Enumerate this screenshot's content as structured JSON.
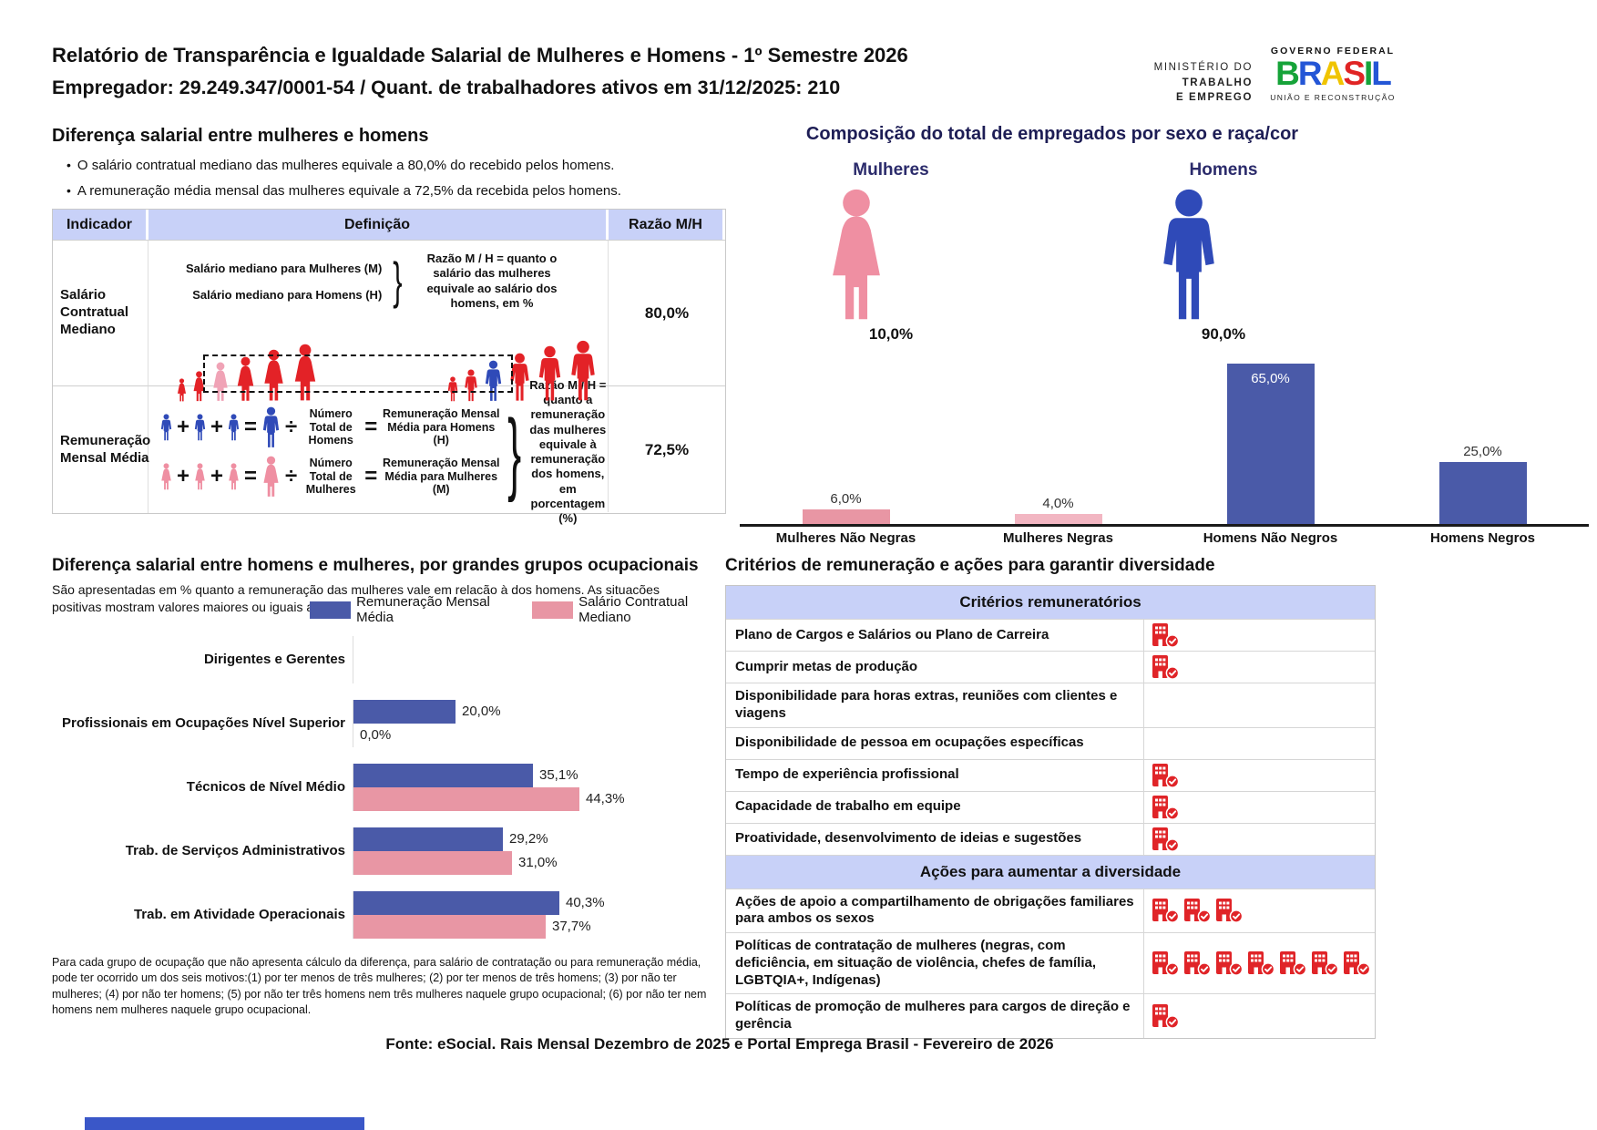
{
  "header": {
    "title_line1": "Relatório de Transparência e Igualdade Salarial de Mulheres e Homens - 1º Semestre 2026",
    "title_line2": "Empregador: 29.249.347/0001-54 / Quant. de trabalhadores ativos em 31/12/2025: 210"
  },
  "logos": {
    "ministry_line1": "MINISTÉRIO DO",
    "ministry_line2": "TRABALHO",
    "ministry_line3": "E EMPREGO",
    "gov_top": "GOVERNO FEDERAL",
    "gov_name": "BRASIL",
    "gov_bottom": "UNIÃO E RECONSTRUÇÃO"
  },
  "ops": {
    "plus": "+",
    "equals": "=",
    "divide": "÷",
    "brace": "}"
  },
  "gap_section": {
    "title": "Diferença salarial entre mulheres e homens",
    "bullets": [
      "O salário contratual mediano das mulheres equivale a 80,0% do recebido pelos homens.",
      "A remuneração média mensal das mulheres equivale a 72,5% da recebida pelos homens."
    ],
    "col_indicator": "Indicador",
    "col_definition": "Definição",
    "col_ratio": "Razão M/H",
    "row1": {
      "indicator": "Salário Contratual Mediano",
      "def_line1": "Salário mediano para Mulheres (M)",
      "def_line2": "Salário mediano para Homens (H)",
      "def_note": "Razão M / H = quanto o salário das mulheres equivale ao salário dos homens, em %",
      "ratio": "80,0%"
    },
    "row2": {
      "indicator": "Remuneração Mensal Média",
      "men_divisor": "Número Total de Homens",
      "men_result": "Remuneração Mensal Média para Homens (H)",
      "women_divisor": "Número Total de Mulheres",
      "women_result": "Remuneração Mensal Média para Mulheres (M)",
      "def_note": "Razão M / H = quanto a remuneração das mulheres equivale à remuneração dos homens, em porcentagem (%)",
      "ratio": "72,5%"
    }
  },
  "composition": {
    "female_label": "Mulheres",
    "female_value": "10,0%",
    "male_label": "Homens",
    "male_value": "90,0%"
  },
  "occupation": {
    "subtitle": "São apresentadas em % quanto a remuneração das mulheres vale em relação à dos homens. As situações positivas mostram valores maiores ou iguais a 100%",
    "legend": [
      "Remuneração Mensal Média",
      "Salário Contratual Mediano"
    ],
    "legend_colors": [
      "#4a5aa8",
      "#e896a4"
    ],
    "footnote": "Para cada grupo de ocupação que não apresenta cálculo da diferença, para salário de contratação ou para remuneração média, pode ter ocorrido um dos seis motivos:(1) por ter menos de três mulheres; (2) por ter menos de três homens; (3) por não ter mulheres; (4) por não ter homens; (5) por não ter três homens nem três mulheres naquele grupo ocupacional; (6) por não ter nem homens nem mulheres naquele grupo ocupacional."
  },
  "chart_data": [
    {
      "id": "composition-by-sex-race",
      "type": "bar",
      "title": "Composição do total de empregados por sexo e raça/cor",
      "categories": [
        "Mulheres Não Negras",
        "Mulheres Negras",
        "Homens Não Negros",
        "Homens Negros"
      ],
      "values": [
        6.0,
        4.0,
        65.0,
        25.0
      ],
      "labels": [
        "6,0%",
        "4,0%",
        "65,0%",
        "25,0%"
      ],
      "colors": [
        "#e896a4",
        "#f2b6c2",
        "#4a5aa8",
        "#4a5aa8"
      ],
      "xlabel": "",
      "ylabel": "",
      "ylim": [
        0,
        70
      ],
      "grid": false,
      "legend": false
    },
    {
      "id": "salary-gap-by-occupation",
      "type": "bar",
      "orientation": "horizontal",
      "title": "Diferença salarial entre homens e mulheres, por grandes grupos ocupacionais",
      "categories": [
        "Dirigentes e Gerentes",
        "Profissionais em Ocupações Nível Superior",
        "Técnicos de Nível Médio",
        "Trab. de Serviços Administrativos",
        "Trab. em Atividade Operacionais"
      ],
      "series": [
        {
          "name": "Remuneração Mensal Média",
          "color": "#4a5aa8",
          "values": [
            null,
            20.0,
            35.1,
            29.2,
            40.3
          ],
          "labels": [
            "",
            "20,0%",
            "35,1%",
            "29,2%",
            "40,3%"
          ]
        },
        {
          "name": "Salário Contratual Mediano",
          "color": "#e896a4",
          "values": [
            null,
            0.0,
            44.3,
            31.0,
            37.7
          ],
          "labels": [
            "",
            "0,0%",
            "44,3%",
            "31,0%",
            "37,7%"
          ]
        }
      ],
      "xlim": [
        0,
        50
      ],
      "grid": false,
      "legend_position": "top-right"
    }
  ],
  "criteria": {
    "title": "Critérios de remuneração e ações para garantir diversidade",
    "section1": "Critérios remuneratórios",
    "section2": "Ações para aumentar a diversidade",
    "rows1": [
      {
        "label": "Plano de Cargos e Salários ou Plano de Carreira",
        "count": 1
      },
      {
        "label": "Cumprir metas de produção",
        "count": 1
      },
      {
        "label": "Disponibilidade para horas extras, reuniões com clientes e viagens",
        "count": 0
      },
      {
        "label": "Disponibilidade de pessoa em ocupações específicas",
        "count": 0
      },
      {
        "label": "Tempo de experiência profissional",
        "count": 1
      },
      {
        "label": "Capacidade de trabalho em equipe",
        "count": 1
      },
      {
        "label": "Proatividade, desenvolvimento de ideias e sugestões",
        "count": 1
      }
    ],
    "rows2": [
      {
        "label": "Ações de apoio a compartilhamento de obrigações familiares para ambos os sexos",
        "count": 3
      },
      {
        "label": "Políticas de contratação de mulheres (negras, com deficiência, em situação de violência, chefes de família, LGBTQIA+, Indígenas)",
        "count": 7
      },
      {
        "label": "Políticas de promoção de mulheres para cargos de direção e gerência",
        "count": 1
      }
    ]
  },
  "footer": {
    "source": "Fonte: eSocial. Rais Mensal Dezembro de 2025 e Portal Emprega Brasil - Fevereiro de 2026"
  }
}
